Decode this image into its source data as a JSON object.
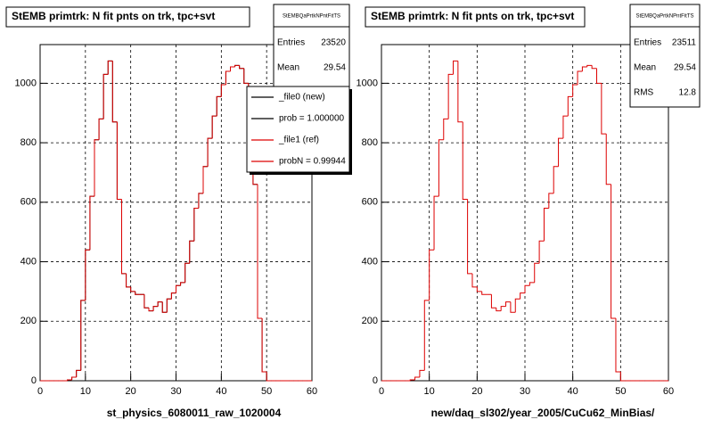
{
  "chart_data": [
    {
      "type": "histogram",
      "title": "StEMB primtrk: N fit pnts on trk, tpc+svt",
      "x_label": "st_physics_6080011_raw_1020004",
      "bins": [
        0,
        1,
        2,
        3,
        4,
        5,
        6,
        7,
        8,
        9,
        10,
        11,
        12,
        13,
        14,
        15,
        16,
        17,
        18,
        19,
        20,
        21,
        22,
        23,
        24,
        25,
        26,
        27,
        28,
        29,
        30,
        31,
        32,
        33,
        34,
        35,
        36,
        37,
        38,
        39,
        40,
        41,
        42,
        43,
        44,
        45,
        46,
        47,
        48,
        49,
        50,
        51,
        52,
        53,
        54,
        55,
        56,
        57,
        58,
        59,
        60
      ],
      "series": [
        {
          "name": "_file0 (new)",
          "color": "#000000",
          "values": [
            0,
            0,
            0,
            0,
            0,
            0,
            3,
            12,
            35,
            270,
            440,
            620,
            810,
            880,
            1030,
            1075,
            870,
            610,
            360,
            315,
            300,
            290,
            290,
            245,
            235,
            250,
            265,
            230,
            275,
            295,
            320,
            330,
            395,
            470,
            580,
            630,
            720,
            815,
            890,
            955,
            995,
            1040,
            1055,
            1060,
            1050,
            1000,
            830,
            660,
            210,
            30,
            0,
            0,
            0,
            0,
            0,
            0,
            0,
            0,
            0,
            0
          ]
        },
        {
          "name": "_file1 (ref)",
          "color": "#dd0000",
          "values": [
            0,
            0,
            0,
            0,
            0,
            0,
            3,
            12,
            35,
            270,
            440,
            620,
            810,
            880,
            1030,
            1075,
            870,
            610,
            360,
            315,
            300,
            290,
            290,
            245,
            235,
            250,
            265,
            230,
            275,
            295,
            320,
            330,
            395,
            470,
            580,
            630,
            720,
            815,
            890,
            955,
            995,
            1040,
            1055,
            1060,
            1050,
            1000,
            830,
            660,
            210,
            30,
            0,
            0,
            0,
            0,
            0,
            0,
            0,
            0,
            0,
            0
          ]
        }
      ],
      "legend_notes": [
        "prob = 1.000000",
        "probN = 0.99944"
      ],
      "xlim": [
        0,
        60
      ],
      "xticks": [
        0,
        10,
        20,
        30,
        40,
        50,
        60
      ],
      "ylim": [
        0,
        1130
      ],
      "yticks": [
        0,
        200,
        400,
        600,
        800,
        1000
      ],
      "grid": true,
      "stats": {
        "title": "StEMBQaPrtkNPntFitTS",
        "rows": [
          [
            "Entries",
            23520
          ],
          [
            "Mean",
            29.54
          ]
        ]
      }
    },
    {
      "type": "histogram",
      "title": "StEMB primtrk: N fit pnts on trk, tpc+svt",
      "x_label": "new/daq_sl302/year_2005/CuCu62_MinBias/",
      "bins": [
        0,
        1,
        2,
        3,
        4,
        5,
        6,
        7,
        8,
        9,
        10,
        11,
        12,
        13,
        14,
        15,
        16,
        17,
        18,
        19,
        20,
        21,
        22,
        23,
        24,
        25,
        26,
        27,
        28,
        29,
        30,
        31,
        32,
        33,
        34,
        35,
        36,
        37,
        38,
        39,
        40,
        41,
        42,
        43,
        44,
        45,
        46,
        47,
        48,
        49,
        50,
        51,
        52,
        53,
        54,
        55,
        56,
        57,
        58,
        59,
        60
      ],
      "series": [
        {
          "name": "_file1 (ref)",
          "color": "#dd0000",
          "values": [
            0,
            0,
            0,
            0,
            0,
            0,
            3,
            12,
            35,
            270,
            440,
            620,
            810,
            880,
            1030,
            1075,
            870,
            610,
            360,
            315,
            300,
            290,
            290,
            245,
            235,
            250,
            265,
            230,
            275,
            295,
            320,
            330,
            395,
            470,
            580,
            630,
            720,
            815,
            890,
            955,
            995,
            1040,
            1055,
            1060,
            1050,
            1000,
            830,
            660,
            210,
            30,
            0,
            0,
            0,
            0,
            0,
            0,
            0,
            0,
            0,
            0
          ]
        }
      ],
      "xlim": [
        0,
        60
      ],
      "xticks": [
        0,
        10,
        20,
        30,
        40,
        50,
        60
      ],
      "ylim": [
        0,
        1130
      ],
      "yticks": [
        0,
        200,
        400,
        600,
        800,
        1000
      ],
      "grid": true,
      "stats": {
        "title": "StEMBQaPrtkNPntFitTS",
        "rows": [
          [
            "Entries",
            23511
          ],
          [
            "Mean",
            29.54
          ],
          [
            "RMS",
            12.8
          ]
        ]
      }
    }
  ]
}
